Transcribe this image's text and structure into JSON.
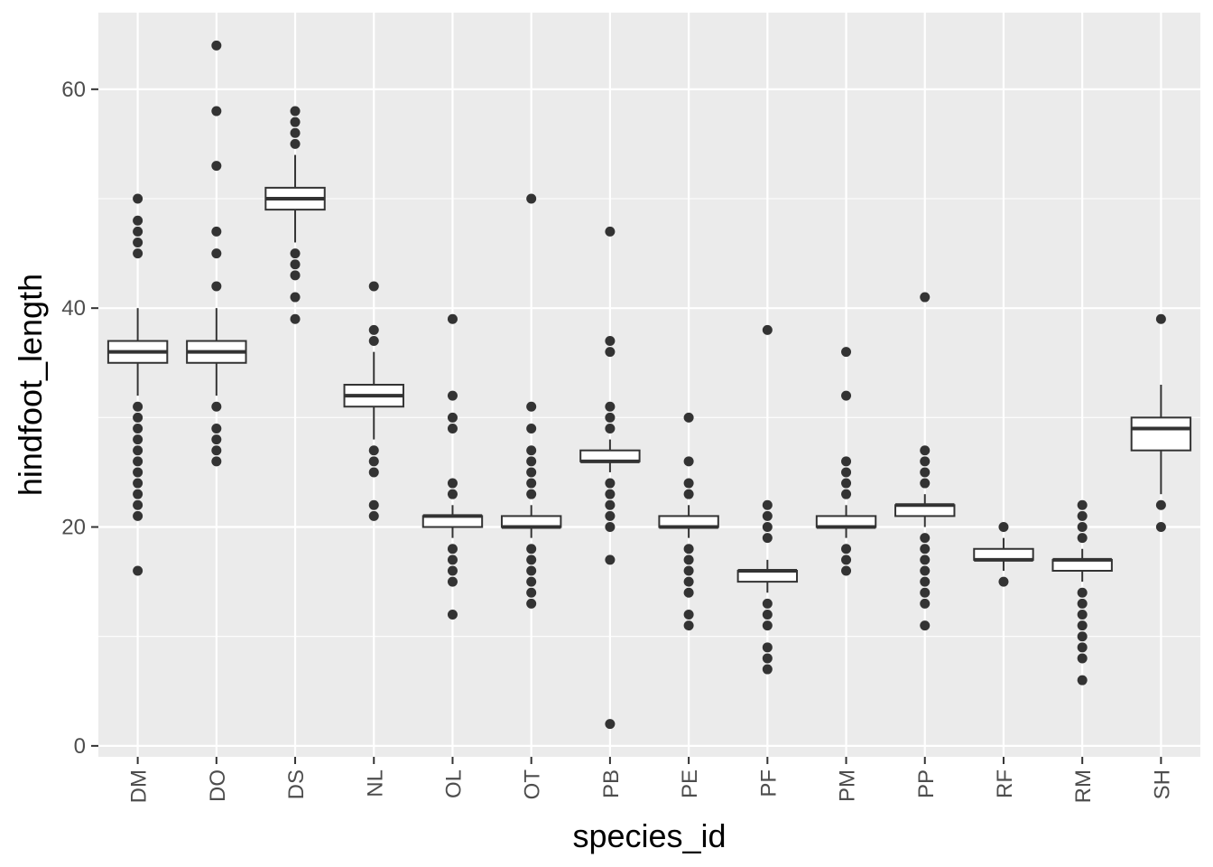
{
  "chart_data": {
    "type": "boxplot",
    "xlabel": "species_id",
    "ylabel": "hindfoot_length",
    "ylim": [
      -1,
      67
    ],
    "yticks": [
      0,
      20,
      40,
      60
    ],
    "grid": true,
    "categories": [
      "DM",
      "DO",
      "DS",
      "NL",
      "OL",
      "OT",
      "PB",
      "PE",
      "PF",
      "PM",
      "PP",
      "RF",
      "RM",
      "SH"
    ],
    "boxes": [
      {
        "category": "DM",
        "whisker_low": 32,
        "q1": 35,
        "median": 36,
        "q3": 37,
        "whisker_high": 40,
        "outliers": [
          16,
          21,
          22,
          23,
          24,
          25,
          26,
          27,
          28,
          29,
          30,
          31,
          45,
          46,
          47,
          48,
          50
        ]
      },
      {
        "category": "DO",
        "whisker_low": 32,
        "q1": 35,
        "median": 36,
        "q3": 37,
        "whisker_high": 40,
        "outliers": [
          26,
          27,
          28,
          29,
          31,
          42,
          45,
          47,
          53,
          58,
          64
        ]
      },
      {
        "category": "DS",
        "whisker_low": 46,
        "q1": 49,
        "median": 50,
        "q3": 51,
        "whisker_high": 54,
        "outliers": [
          39,
          41,
          43,
          44,
          45,
          55,
          56,
          57,
          58
        ]
      },
      {
        "category": "NL",
        "whisker_low": 28,
        "q1": 31,
        "median": 32,
        "q3": 33,
        "whisker_high": 36,
        "outliers": [
          21,
          22,
          25,
          26,
          27,
          37,
          38,
          42
        ]
      },
      {
        "category": "OL",
        "whisker_low": 19,
        "q1": 20,
        "median": 21,
        "q3": 21,
        "whisker_high": 22,
        "outliers": [
          12,
          15,
          16,
          17,
          18,
          23,
          24,
          29,
          30,
          32,
          39
        ]
      },
      {
        "category": "OT",
        "whisker_low": 19,
        "q1": 20,
        "median": 20,
        "q3": 21,
        "whisker_high": 22,
        "outliers": [
          13,
          14,
          15,
          16,
          17,
          18,
          23,
          24,
          25,
          26,
          27,
          29,
          31,
          50
        ]
      },
      {
        "category": "PB",
        "whisker_low": 25,
        "q1": 26,
        "median": 26,
        "q3": 27,
        "whisker_high": 28,
        "outliers": [
          2,
          17,
          20,
          21,
          22,
          23,
          24,
          29,
          30,
          31,
          36,
          37,
          47
        ]
      },
      {
        "category": "PE",
        "whisker_low": 19,
        "q1": 20,
        "median": 20,
        "q3": 21,
        "whisker_high": 22,
        "outliers": [
          11,
          12,
          14,
          15,
          16,
          17,
          18,
          23,
          24,
          26,
          30
        ]
      },
      {
        "category": "PF",
        "whisker_low": 14,
        "q1": 15,
        "median": 16,
        "q3": 16,
        "whisker_high": 17,
        "outliers": [
          7,
          8,
          9,
          11,
          12,
          13,
          19,
          20,
          21,
          22,
          38
        ]
      },
      {
        "category": "PM",
        "whisker_low": 19,
        "q1": 20,
        "median": 20,
        "q3": 21,
        "whisker_high": 22,
        "outliers": [
          16,
          17,
          18,
          23,
          24,
          25,
          26,
          32,
          36
        ]
      },
      {
        "category": "PP",
        "whisker_low": 20,
        "q1": 21,
        "median": 22,
        "q3": 22,
        "whisker_high": 23,
        "outliers": [
          11,
          13,
          14,
          15,
          16,
          17,
          18,
          19,
          24,
          25,
          26,
          27,
          41
        ]
      },
      {
        "category": "RF",
        "whisker_low": 16,
        "q1": 17,
        "median": 17,
        "q3": 18,
        "whisker_high": 19,
        "outliers": [
          15,
          20
        ]
      },
      {
        "category": "RM",
        "whisker_low": 15,
        "q1": 16,
        "median": 17,
        "q3": 17,
        "whisker_high": 18,
        "outliers": [
          6,
          8,
          9,
          10,
          11,
          12,
          13,
          14,
          19,
          20,
          21,
          22
        ]
      },
      {
        "category": "SH",
        "whisker_low": 23,
        "q1": 27,
        "median": 29,
        "q3": 30,
        "whisker_high": 33,
        "outliers": [
          20,
          22,
          39
        ]
      }
    ],
    "colors": {
      "panel": "#ebebeb",
      "grid": "#ffffff",
      "box_fill": "#ffffff",
      "box_line": "#333333",
      "point": "#333333",
      "tick": "#333333"
    }
  }
}
